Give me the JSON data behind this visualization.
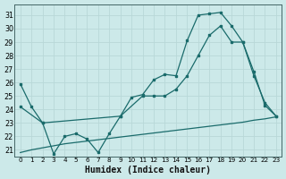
{
  "xlabel": "Humidex (Indice chaleur)",
  "bg_color": "#cce9e9",
  "grid_color": "#b8d8d8",
  "line_color": "#1a6b6b",
  "xlim": [
    -0.5,
    23.5
  ],
  "ylim": [
    20.5,
    31.8
  ],
  "yticks": [
    21,
    22,
    23,
    24,
    25,
    26,
    27,
    28,
    29,
    30,
    31
  ],
  "xticks": [
    0,
    1,
    2,
    3,
    4,
    5,
    6,
    7,
    8,
    9,
    10,
    11,
    12,
    13,
    14,
    15,
    16,
    17,
    18,
    19,
    20,
    21,
    22,
    23
  ],
  "line1_x": [
    0,
    1,
    2,
    3,
    4,
    5,
    6,
    7,
    8,
    9,
    10,
    11,
    12,
    13,
    14,
    15,
    16,
    17,
    18,
    19,
    20,
    21,
    22,
    23
  ],
  "line1_y": [
    25.9,
    24.2,
    23.0,
    20.7,
    22.0,
    22.2,
    21.8,
    20.8,
    22.2,
    23.5,
    24.9,
    25.1,
    26.2,
    26.6,
    26.5,
    29.1,
    31.0,
    31.1,
    31.2,
    30.2,
    29.0,
    26.8,
    24.3,
    23.5
  ],
  "line2_x": [
    0,
    2,
    9,
    11,
    12,
    13,
    14,
    15,
    16,
    17,
    18,
    19,
    20,
    21,
    22,
    23
  ],
  "line2_y": [
    24.2,
    23.0,
    23.5,
    25.0,
    25.0,
    25.0,
    25.5,
    26.5,
    28.0,
    29.5,
    30.2,
    29.0,
    29.0,
    26.5,
    24.5,
    23.5
  ],
  "line3_x": [
    0,
    1,
    2,
    3,
    4,
    5,
    6,
    7,
    8,
    9,
    10,
    11,
    12,
    13,
    14,
    15,
    16,
    17,
    18,
    19,
    20,
    21,
    22,
    23
  ],
  "line3_y": [
    20.8,
    21.0,
    21.15,
    21.3,
    21.45,
    21.55,
    21.65,
    21.75,
    21.85,
    21.95,
    22.05,
    22.15,
    22.25,
    22.35,
    22.45,
    22.55,
    22.65,
    22.75,
    22.85,
    22.95,
    23.05,
    23.2,
    23.3,
    23.45
  ]
}
